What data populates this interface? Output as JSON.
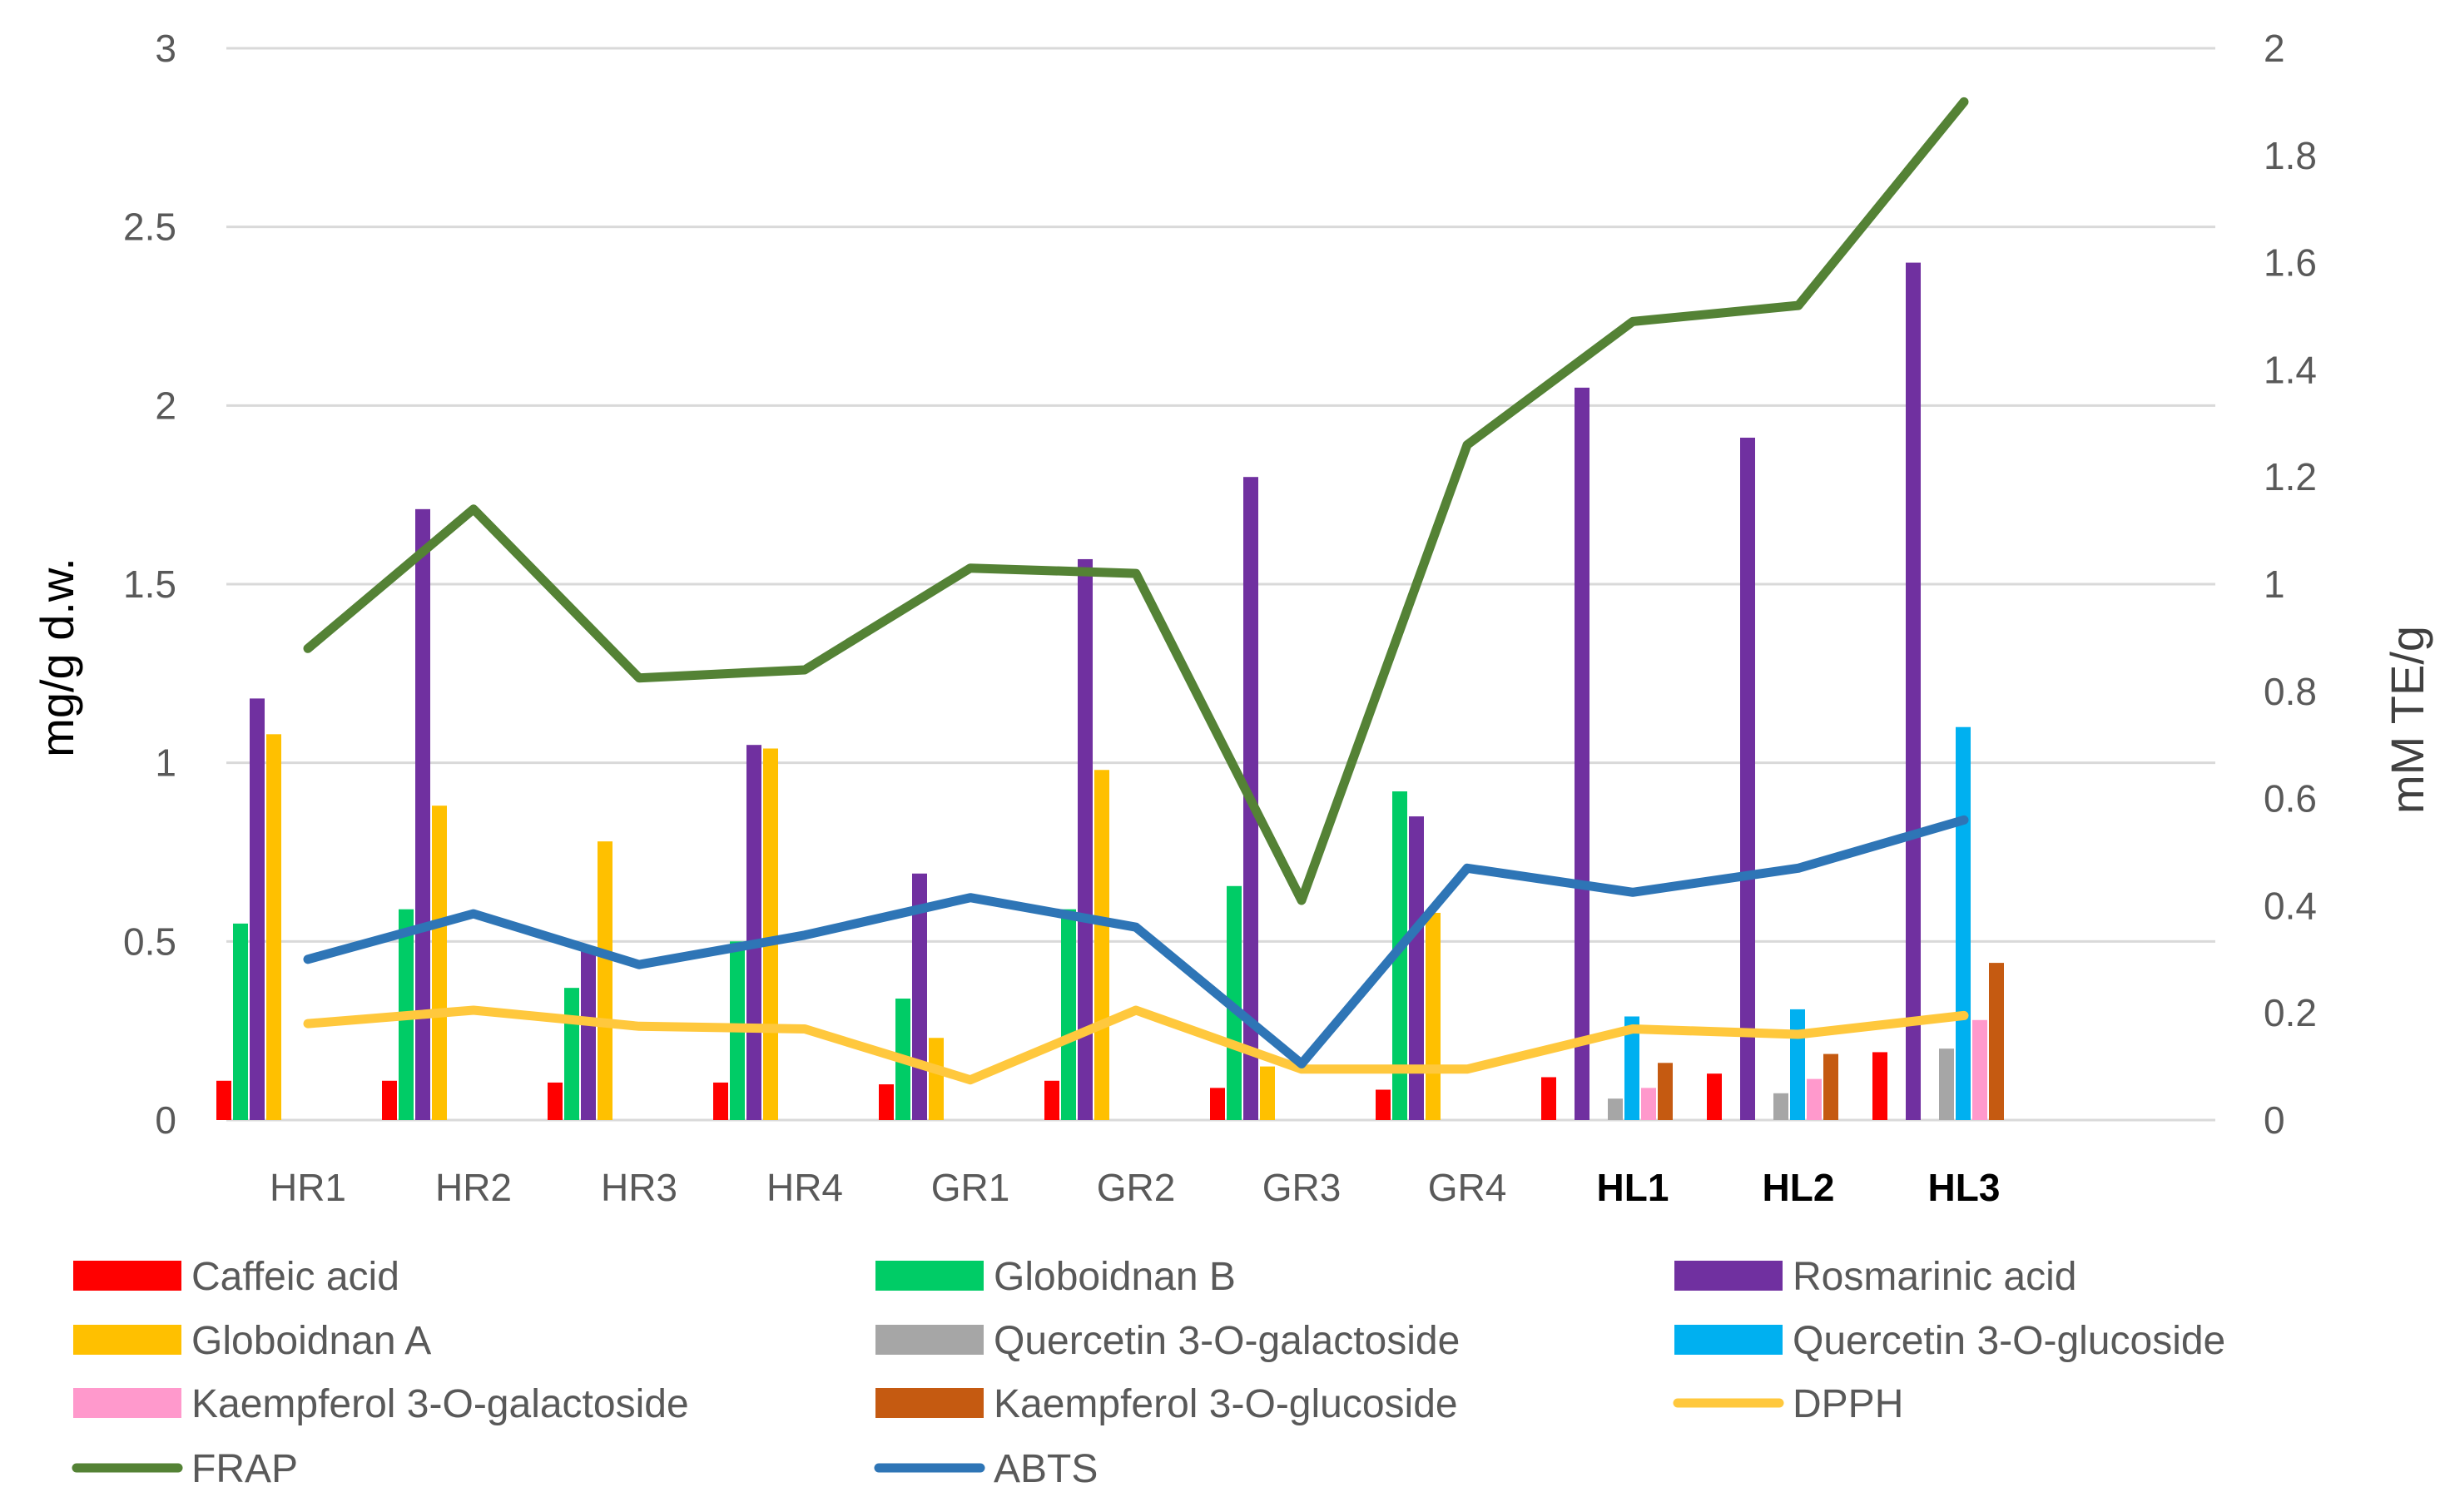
{
  "chart_data": {
    "type": "bar",
    "title": "",
    "categories": [
      "HR1",
      "HR2",
      "HR3",
      "HR4",
      "GR1",
      "GR2",
      "GR3",
      "GR4",
      "HL1",
      "HL2",
      "HL3"
    ],
    "bold_categories": [
      "HL1",
      "HL2",
      "HL3"
    ],
    "ylabel": "mg/g d.w.",
    "y2label": "mM TE/g",
    "ylim": [
      0,
      3
    ],
    "y2lim": [
      0,
      2
    ],
    "yticks": [
      "0",
      "0.5",
      "1",
      "1.5",
      "2",
      "2.5",
      "3"
    ],
    "y2ticks": [
      "0",
      "0.2",
      "0.4",
      "0.6",
      "0.8",
      "1",
      "1.2",
      "1.4",
      "1.6",
      "1.8",
      "2"
    ],
    "grid": true,
    "legend_position": "bottom",
    "series": [
      {
        "name": "Caffeic acid",
        "kind": "bar",
        "axis": "left",
        "color": "#FF0000",
        "values": [
          0.11,
          0.11,
          0.105,
          0.105,
          0.1,
          0.11,
          0.09,
          0.085,
          0.12,
          0.13,
          0.19
        ]
      },
      {
        "name": "Globoidnan B",
        "kind": "bar",
        "axis": "left",
        "color": "#00CC66",
        "values": [
          0.55,
          0.59,
          0.37,
          0.5,
          0.34,
          0.59,
          0.655,
          0.92,
          0,
          0,
          0
        ]
      },
      {
        "name": "Rosmarinic acid",
        "kind": "bar",
        "axis": "left",
        "color": "#7030A0",
        "values": [
          1.18,
          1.71,
          0.48,
          1.05,
          0.69,
          1.57,
          1.8,
          0.85,
          2.05,
          1.91,
          2.4
        ]
      },
      {
        "name": "Globoidnan A",
        "kind": "bar",
        "axis": "left",
        "color": "#FFC000",
        "values": [
          1.08,
          0.88,
          0.78,
          1.04,
          0.23,
          0.98,
          0.15,
          0.58,
          0,
          0,
          0
        ]
      },
      {
        "name": "Quercetin 3-O-galactoside",
        "kind": "bar",
        "axis": "left",
        "color": "#A6A6A6",
        "values": [
          0,
          0,
          0,
          0,
          0,
          0,
          0,
          0,
          0.06,
          0.075,
          0.2
        ]
      },
      {
        "name": "Quercetin 3-O-glucoside",
        "kind": "bar",
        "axis": "left",
        "color": "#00B0F0",
        "values": [
          0,
          0,
          0,
          0,
          0,
          0,
          0,
          0,
          0.29,
          0.31,
          1.1
        ]
      },
      {
        "name": "Kaempferol 3-O-galactoside",
        "kind": "bar",
        "axis": "left",
        "color": "#FF99CC",
        "values": [
          0,
          0,
          0,
          0,
          0,
          0,
          0,
          0,
          0.09,
          0.115,
          0.28
        ]
      },
      {
        "name": "Kaempferol 3-O-glucoside",
        "kind": "bar",
        "axis": "left",
        "color": "#C55A11",
        "values": [
          0,
          0,
          0,
          0,
          0,
          0,
          0,
          0,
          0.16,
          0.185,
          0.44
        ]
      },
      {
        "name": "DPPH",
        "kind": "line",
        "axis": "right",
        "color": "#FFC83D",
        "values": [
          0.18,
          0.205,
          0.175,
          0.17,
          0.075,
          0.205,
          0.095,
          0.095,
          0.17,
          0.16,
          0.195
        ]
      },
      {
        "name": "FRAP",
        "kind": "line",
        "axis": "right",
        "color": "#548235",
        "values": [
          0.88,
          1.14,
          0.825,
          0.84,
          1.03,
          1.02,
          0.41,
          1.26,
          1.49,
          1.52,
          1.9
        ]
      },
      {
        "name": "ABTS",
        "kind": "line",
        "axis": "right",
        "color": "#2E75B6",
        "values": [
          0.3,
          0.385,
          0.29,
          0.345,
          0.415,
          0.36,
          0.105,
          0.47,
          0.425,
          0.47,
          0.56
        ]
      }
    ]
  }
}
